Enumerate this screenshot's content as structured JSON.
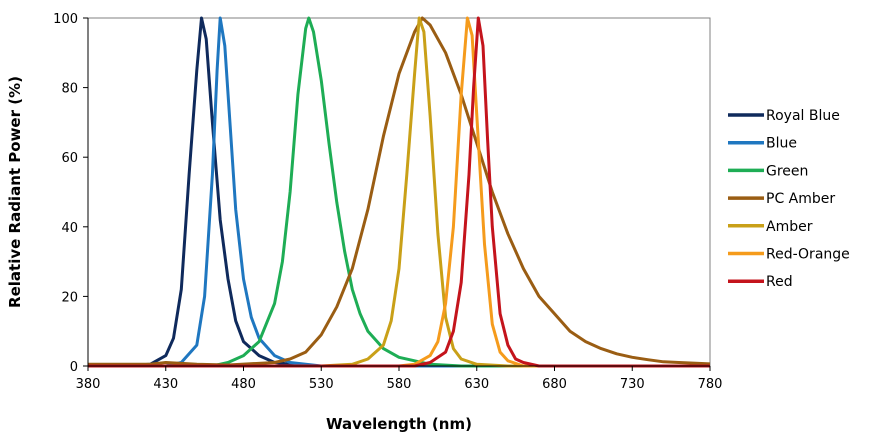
{
  "chart_data": {
    "type": "line",
    "title": "",
    "xlabel": "Wavelength (nm)",
    "ylabel": "Relative Radiant Power (%)",
    "xlim": [
      380,
      780
    ],
    "ylim": [
      0,
      100
    ],
    "x_ticks": [
      "380",
      "430",
      "480",
      "530",
      "580",
      "630",
      "680",
      "730",
      "780"
    ],
    "y_ticks": [
      "0",
      "20",
      "40",
      "60",
      "80",
      "100"
    ],
    "grid": false,
    "legend_position": "right",
    "series": [
      {
        "name": "Royal Blue",
        "color": "#0f2a5c",
        "points": [
          [
            380,
            0
          ],
          [
            400,
            0
          ],
          [
            420,
            0.5
          ],
          [
            430,
            3
          ],
          [
            435,
            8
          ],
          [
            440,
            22
          ],
          [
            445,
            55
          ],
          [
            450,
            85
          ],
          [
            453,
            100
          ],
          [
            456,
            94
          ],
          [
            460,
            70
          ],
          [
            465,
            42
          ],
          [
            470,
            25
          ],
          [
            475,
            13
          ],
          [
            480,
            7
          ],
          [
            490,
            3
          ],
          [
            500,
            1
          ],
          [
            520,
            0
          ],
          [
            780,
            0
          ]
        ]
      },
      {
        "name": "Blue",
        "color": "#1f77c0",
        "points": [
          [
            380,
            0
          ],
          [
            430,
            0
          ],
          [
            440,
            1
          ],
          [
            450,
            6
          ],
          [
            455,
            20
          ],
          [
            460,
            55
          ],
          [
            463,
            85
          ],
          [
            465,
            100
          ],
          [
            468,
            92
          ],
          [
            472,
            65
          ],
          [
            475,
            45
          ],
          [
            480,
            25
          ],
          [
            485,
            14
          ],
          [
            490,
            8
          ],
          [
            500,
            3
          ],
          [
            510,
            1
          ],
          [
            530,
            0
          ],
          [
            780,
            0
          ]
        ]
      },
      {
        "name": "Green",
        "color": "#1ead55",
        "points": [
          [
            380,
            0
          ],
          [
            460,
            0
          ],
          [
            470,
            1
          ],
          [
            480,
            3
          ],
          [
            490,
            7
          ],
          [
            500,
            18
          ],
          [
            505,
            30
          ],
          [
            510,
            50
          ],
          [
            515,
            78
          ],
          [
            520,
            97
          ],
          [
            522,
            100
          ],
          [
            525,
            96
          ],
          [
            530,
            82
          ],
          [
            535,
            64
          ],
          [
            540,
            47
          ],
          [
            545,
            33
          ],
          [
            550,
            22
          ],
          [
            555,
            15
          ],
          [
            560,
            10
          ],
          [
            570,
            5
          ],
          [
            580,
            2.5
          ],
          [
            590,
            1.5
          ],
          [
            600,
            0.5
          ],
          [
            620,
            0
          ],
          [
            780,
            0
          ]
        ]
      },
      {
        "name": "PC Amber",
        "color": "#9a5d13",
        "points": [
          [
            380,
            0.5
          ],
          [
            420,
            0.5
          ],
          [
            430,
            1
          ],
          [
            450,
            0.5
          ],
          [
            470,
            0.3
          ],
          [
            500,
            1
          ],
          [
            510,
            2
          ],
          [
            520,
            4
          ],
          [
            530,
            9
          ],
          [
            540,
            17
          ],
          [
            550,
            28
          ],
          [
            560,
            45
          ],
          [
            570,
            66
          ],
          [
            580,
            84
          ],
          [
            590,
            96
          ],
          [
            595,
            100
          ],
          [
            600,
            98
          ],
          [
            610,
            90
          ],
          [
            620,
            78
          ],
          [
            630,
            64
          ],
          [
            640,
            50
          ],
          [
            650,
            38
          ],
          [
            660,
            28
          ],
          [
            670,
            20
          ],
          [
            680,
            15
          ],
          [
            690,
            10
          ],
          [
            700,
            7
          ],
          [
            710,
            5
          ],
          [
            720,
            3.5
          ],
          [
            730,
            2.5
          ],
          [
            740,
            1.8
          ],
          [
            750,
            1.2
          ],
          [
            760,
            1
          ],
          [
            780,
            0.6
          ]
        ]
      },
      {
        "name": "Amber",
        "color": "#c9a018",
        "points": [
          [
            380,
            0
          ],
          [
            530,
            0
          ],
          [
            550,
            0.5
          ],
          [
            560,
            2
          ],
          [
            570,
            6
          ],
          [
            575,
            13
          ],
          [
            580,
            28
          ],
          [
            585,
            55
          ],
          [
            590,
            84
          ],
          [
            593,
            100
          ],
          [
            596,
            96
          ],
          [
            600,
            72
          ],
          [
            605,
            38
          ],
          [
            610,
            14
          ],
          [
            615,
            5
          ],
          [
            620,
            2
          ],
          [
            630,
            0.5
          ],
          [
            650,
            0
          ],
          [
            780,
            0
          ]
        ]
      },
      {
        "name": "Red-Orange",
        "color": "#f59b1c",
        "points": [
          [
            380,
            0
          ],
          [
            580,
            0
          ],
          [
            590,
            0.5
          ],
          [
            600,
            3
          ],
          [
            605,
            7
          ],
          [
            610,
            18
          ],
          [
            615,
            40
          ],
          [
            620,
            78
          ],
          [
            624,
            100
          ],
          [
            627,
            95
          ],
          [
            630,
            72
          ],
          [
            635,
            35
          ],
          [
            640,
            12
          ],
          [
            645,
            4
          ],
          [
            650,
            1.5
          ],
          [
            660,
            0
          ],
          [
            780,
            0
          ]
        ]
      },
      {
        "name": "Red",
        "color": "#c4141c",
        "points": [
          [
            380,
            0
          ],
          [
            590,
            0
          ],
          [
            600,
            1
          ],
          [
            610,
            4
          ],
          [
            615,
            10
          ],
          [
            620,
            24
          ],
          [
            625,
            55
          ],
          [
            628,
            80
          ],
          [
            631,
            100
          ],
          [
            634,
            92
          ],
          [
            637,
            65
          ],
          [
            640,
            40
          ],
          [
            645,
            15
          ],
          [
            650,
            6
          ],
          [
            655,
            2
          ],
          [
            660,
            1
          ],
          [
            670,
            0
          ],
          [
            780,
            0
          ]
        ]
      }
    ]
  }
}
